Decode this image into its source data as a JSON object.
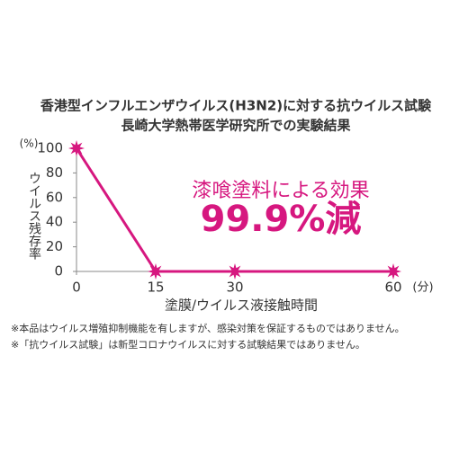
{
  "chart_data": {
    "type": "line",
    "title": "香港型インフルエンザウイルス(H3N2)に対する抗ウイルス試験",
    "subtitle": "長崎大学熱帯医学研究所での実験結果",
    "y_label": "ウイルス残存率",
    "y_unit": "(%)",
    "x_label": "塗膜/ウイルス液接触時間",
    "x_unit": "(分)",
    "x": [
      0,
      15,
      30,
      60
    ],
    "values": [
      100,
      0,
      0,
      0
    ],
    "color": "#d6177f",
    "xlim": [
      0,
      60
    ],
    "xticks": [
      0,
      15,
      30,
      60
    ],
    "ylim": [
      0,
      100
    ],
    "yticks": [
      0,
      20,
      40,
      60,
      80,
      100
    ],
    "grid": false,
    "annotations": [
      "漆喰塗料による効果",
      "99.9%減"
    ],
    "footnotes": [
      "※本品はウイルス増殖抑制機能を有しますが、感染対策を保証するものではありません。",
      "※「抗ウイルス試験」は新型コロナウイルスに対する試験結果ではありません。"
    ]
  }
}
